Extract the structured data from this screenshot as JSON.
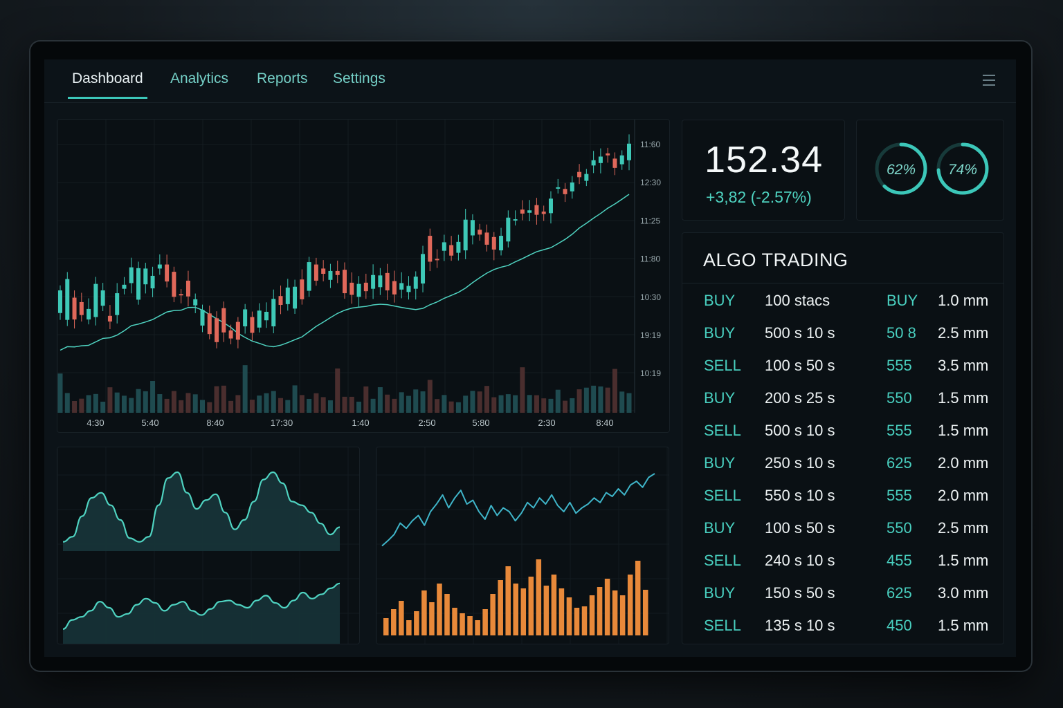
{
  "nav": {
    "tabs": [
      {
        "label": "Dashboard",
        "active": true
      },
      {
        "label": "Analytics",
        "active": false
      },
      {
        "label": "Reports",
        "active": false
      },
      {
        "label": "Settings",
        "active": false
      }
    ],
    "menu_icon": "hamburger-menu-icon"
  },
  "ticker": {
    "price": "152.34",
    "change": "+3,82 (-2.57%)"
  },
  "gauges": [
    {
      "value": 62,
      "label": "62%"
    },
    {
      "value": 74,
      "label": "74%"
    }
  ],
  "algo": {
    "title": "ALGO TRADING",
    "rows": [
      {
        "side": "BUY",
        "qty": "100 stacs",
        "code": "BUY",
        "size": "1.0 mm"
      },
      {
        "side": "BUY",
        "qty": "500 s 10 s",
        "code": "50 8",
        "size": "2.5 mm"
      },
      {
        "side": "SELL",
        "qty": "100 s 50 s",
        "code": "555",
        "size": "3.5 mm"
      },
      {
        "side": "BUY",
        "qty": "200 s 25 s",
        "code": "550",
        "size": "1.5 mm"
      },
      {
        "side": "SELL",
        "qty": "500 s 10 s",
        "code": "555",
        "size": "1.5 mm"
      },
      {
        "side": "BUY",
        "qty": "250 s 10 s",
        "code": "625",
        "size": "2.0 mm"
      },
      {
        "side": "SELL",
        "qty": "550 s 10 s",
        "code": "555",
        "size": "2.0 mm"
      },
      {
        "side": "BUY",
        "qty": "100 s 50 s",
        "code": "550",
        "size": "2.5 mm"
      },
      {
        "side": "SELL",
        "qty": "240 s 10 s",
        "code": "455",
        "size": "1.5 mm"
      },
      {
        "side": "BUY",
        "qty": "150 s 50 s",
        "code": "625",
        "size": "3.0 mm"
      },
      {
        "side": "SELL",
        "qty": "135 s 10 s",
        "code": "450",
        "size": "1.5 mm"
      }
    ]
  },
  "colors": {
    "up": "#3ec9b7",
    "down": "#e0685a",
    "accent": "#3cc7b9",
    "bars": "#e8893a"
  },
  "chart_data": [
    {
      "type": "candlestick",
      "x_ticks": [
        "4:30",
        "5:40",
        "8:40",
        "17:30",
        "1:40",
        "2:50",
        "5:80",
        "2:30",
        "8:40"
      ],
      "y_ticks": [
        "11:60",
        "12:30",
        "11:25",
        "11:80",
        "10:30",
        "19:19",
        "10:19"
      ],
      "candles": [
        [
          0,
          -1.4,
          4.2
        ],
        [
          1,
          -3.1,
          7.0
        ],
        [
          2,
          2.4,
          -3.0
        ],
        [
          3,
          1.3,
          -1.9
        ],
        [
          4,
          -3.0,
          -0.4
        ],
        [
          5,
          -2.4,
          5.8
        ],
        [
          6,
          0.4,
          4.2
        ],
        [
          7,
          -2.1,
          -3.5
        ],
        [
          8,
          -1.9,
          3.5
        ],
        [
          9,
          4.6,
          5.6
        ],
        [
          10,
          6.0,
          9.9
        ],
        [
          11,
          1.9,
          9.7
        ],
        [
          12,
          5.7,
          9.6
        ],
        [
          13,
          4.7,
          7.8
        ],
        [
          14,
          9.6,
          10.6
        ],
        [
          15,
          10.6,
          6.4
        ],
        [
          16,
          8.8,
          2.6
        ],
        [
          17,
          3.3,
          3.0
        ],
        [
          18,
          6.6,
          2.7
        ],
        [
          19,
          0.5,
          2.0
        ],
        [
          20,
          -4.5,
          -0.6
        ],
        [
          21,
          -1.5,
          -6.6
        ],
        [
          22,
          -2.7,
          -8.6
        ],
        [
          23,
          -0.2,
          -6.2
        ],
        [
          24,
          -5.7,
          -7.7
        ],
        [
          25,
          -3.6,
          -8.0
        ],
        [
          26,
          -4.7,
          -0.5
        ],
        [
          27,
          -2.4,
          -6.3
        ],
        [
          28,
          -5.0,
          -0.8
        ],
        [
          29,
          -3.2,
          -1.1
        ],
        [
          30,
          -4.7,
          2.1
        ],
        [
          31,
          2.8,
          0.6
        ],
        [
          32,
          0.8,
          4.9
        ],
        [
          33,
          -0.3,
          5.1
        ],
        [
          34,
          6.9,
          2.0
        ],
        [
          35,
          4.1,
          11.2
        ],
        [
          36,
          10.6,
          6.6
        ],
        [
          37,
          9.6,
          8.3
        ],
        [
          38,
          6.8,
          9.0
        ],
        [
          39,
          9.0,
          8.0
        ],
        [
          40,
          9.3,
          3.5
        ],
        [
          41,
          6.1,
          3.1
        ],
        [
          42,
          2.6,
          5.8
        ],
        [
          43,
          6.1,
          4.0
        ],
        [
          44,
          4.6,
          8.0
        ],
        [
          45,
          5.0,
          7.9
        ],
        [
          46,
          8.5,
          4.2
        ],
        [
          47,
          6.5,
          3.2
        ],
        [
          48,
          4.4,
          6.0
        ],
        [
          49,
          3.8,
          5.3
        ],
        [
          50,
          4.6,
          7.6
        ],
        [
          51,
          5.9,
          13.2
        ],
        [
          52,
          17.7,
          11.3
        ],
        [
          53,
          12.0,
          11.7
        ],
        [
          54,
          14.0,
          16.1
        ],
        [
          55,
          15.4,
          12.8
        ],
        [
          56,
          13.5,
          16.2
        ],
        [
          57,
          14.1,
          21.7
        ],
        [
          58,
          17.8,
          21.6
        ],
        [
          59,
          19.2,
          18.0
        ],
        [
          60,
          18.5,
          15.5
        ],
        [
          61,
          17.4,
          14.3
        ],
        [
          62,
          14.1,
          17.7
        ],
        [
          63,
          16.3,
          22.2
        ],
        [
          64,
          21.8,
          21.8
        ],
        [
          65,
          24.2,
          23.2
        ],
        [
          66,
          23.4,
          24.0
        ],
        [
          67,
          25.3,
          22.9
        ],
        [
          68,
          23.7,
          23.1
        ],
        [
          69,
          23.3,
          26.9
        ],
        [
          70,
          29.5,
          29.7
        ],
        [
          71,
          29.3,
          28.0
        ],
        [
          72,
          28.7,
          30.9
        ],
        [
          73,
          33.5,
          32.2
        ],
        [
          74,
          31.3,
          33.0
        ],
        [
          75,
          35.1,
          36.4
        ],
        [
          76,
          35.7,
          37.3
        ],
        [
          77,
          38.1,
          37.6
        ],
        [
          78,
          36.8,
          34.5
        ],
        [
          79,
          35.4,
          37.6
        ],
        [
          80,
          36.4,
          40.5
        ]
      ],
      "moving_average": true,
      "volume": true,
      "grid": true
    },
    {
      "type": "area",
      "series": [
        {
          "values": [
            0.05,
            0.12,
            0.4,
            0.65,
            0.72,
            0.55,
            0.35,
            0.1,
            0.05,
            0.12,
            0.55,
            0.92,
            1.0,
            0.72,
            0.5,
            0.62,
            0.7,
            0.45,
            0.22,
            0.35,
            0.6,
            0.9,
            1.0,
            0.85,
            0.6,
            0.55,
            0.45,
            0.3,
            0.15,
            0.25
          ]
        },
        {
          "values": [
            0.15,
            0.3,
            0.35,
            0.45,
            0.6,
            0.5,
            0.35,
            0.4,
            0.55,
            0.65,
            0.58,
            0.45,
            0.55,
            0.6,
            0.45,
            0.38,
            0.48,
            0.6,
            0.62,
            0.55,
            0.5,
            0.62,
            0.7,
            0.58,
            0.5,
            0.62,
            0.75,
            0.65,
            0.72,
            0.82,
            0.9
          ]
        }
      ]
    },
    {
      "type": "line",
      "values": [
        0.05,
        0.12,
        0.2,
        0.35,
        0.28,
        0.38,
        0.45,
        0.32,
        0.5,
        0.6,
        0.72,
        0.55,
        0.68,
        0.78,
        0.6,
        0.65,
        0.5,
        0.4,
        0.58,
        0.45,
        0.55,
        0.5,
        0.38,
        0.48,
        0.62,
        0.55,
        0.68,
        0.6,
        0.72,
        0.58,
        0.5,
        0.62,
        0.48,
        0.55,
        0.6,
        0.68,
        0.62,
        0.75,
        0.7,
        0.8,
        0.72,
        0.85,
        0.9,
        0.82,
        0.95,
        1.0
      ]
    },
    {
      "type": "bar",
      "values": [
        0.15,
        0.28,
        0.4,
        0.12,
        0.25,
        0.55,
        0.38,
        0.65,
        0.5,
        0.3,
        0.22,
        0.18,
        0.12,
        0.28,
        0.5,
        0.7,
        0.9,
        0.65,
        0.58,
        0.75,
        1.0,
        0.62,
        0.78,
        0.58,
        0.45,
        0.3,
        0.32,
        0.48,
        0.6,
        0.72,
        0.55,
        0.48,
        0.78,
        0.98,
        0.56
      ]
    }
  ]
}
